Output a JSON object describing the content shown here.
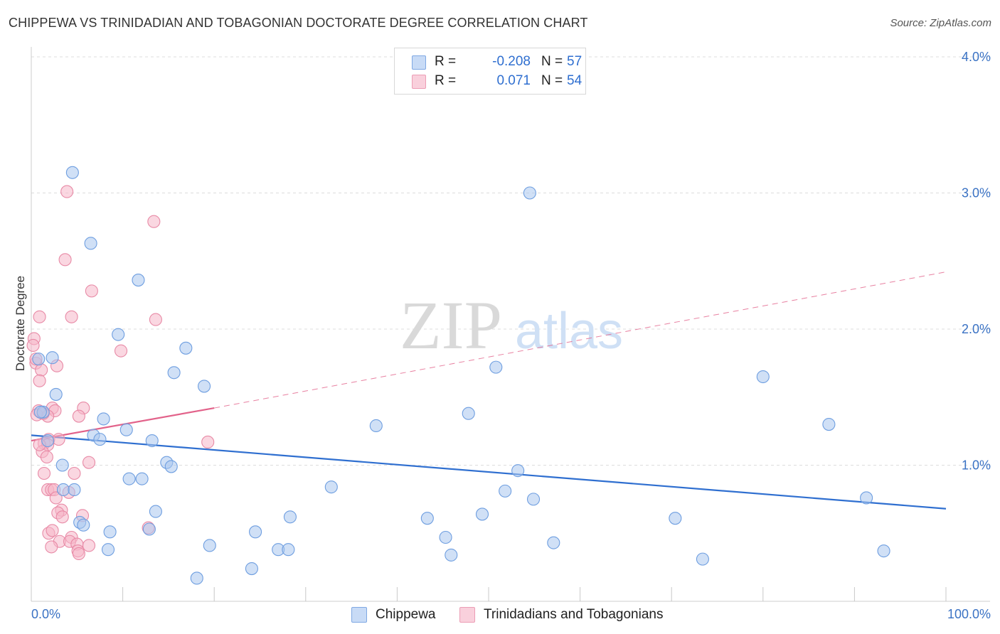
{
  "header": {
    "title": "CHIPPEWA VS TRINIDADIAN AND TOBAGONIAN DOCTORATE DEGREE CORRELATION CHART",
    "source": "Source: ZipAtlas.com"
  },
  "watermark": {
    "zip": "ZIP",
    "atlas": "atlas"
  },
  "legend_top": {
    "rows": [
      {
        "r_label": "R =",
        "r_value": "-0.208",
        "n_label": "N =",
        "n_value": "57",
        "color": "#a9c6ef"
      },
      {
        "r_label": "R =",
        "r_value": "0.071",
        "n_label": "N =",
        "n_value": "54",
        "color": "#f5b6c8"
      }
    ]
  },
  "legend_bottom": {
    "items": [
      {
        "label": "Chippewa",
        "color": "#a9c6ef"
      },
      {
        "label": "Trinidadians and Tobagonians",
        "color": "#f5b6c8"
      }
    ]
  },
  "colors": {
    "blue_fill": "#a9c6ef",
    "blue_stroke": "#6e9ee0",
    "blue_line": "#2f6fd0",
    "pink_fill": "#f5b6c8",
    "pink_stroke": "#e88aa6",
    "pink_line": "#e2628a",
    "grid": "#dddddd",
    "tick_label": "#3a72c4"
  },
  "chart_data": {
    "type": "scatter",
    "title": "CHIPPEWA VS TRINIDADIAN AND TOBAGONIAN DOCTORATE DEGREE CORRELATION CHART",
    "xlabel": "",
    "ylabel": "Doctorate Degree",
    "xlim": [
      0,
      100
    ],
    "ylim": [
      0,
      4.1
    ],
    "x_tick_labels": [
      "0.0%",
      "100.0%"
    ],
    "y_ticks": [
      1.0,
      2.0,
      3.0,
      4.0
    ],
    "y_tick_labels": [
      "1.0%",
      "2.0%",
      "3.0%",
      "4.0%"
    ],
    "grid": true,
    "series": [
      {
        "name": "Chippewa",
        "points": [
          [
            4.5,
            3.15
          ],
          [
            0.8,
            1.78
          ],
          [
            2.3,
            1.79
          ],
          [
            6.5,
            2.63
          ],
          [
            11.7,
            2.36
          ],
          [
            9.5,
            1.96
          ],
          [
            16.9,
            1.86
          ],
          [
            15.6,
            1.68
          ],
          [
            18.9,
            1.58
          ],
          [
            2.7,
            1.52
          ],
          [
            1.3,
            1.39
          ],
          [
            7.9,
            1.34
          ],
          [
            10.4,
            1.26
          ],
          [
            6.8,
            1.22
          ],
          [
            7.5,
            1.19
          ],
          [
            13.2,
            1.18
          ],
          [
            14.8,
            1.02
          ],
          [
            3.4,
            1.0
          ],
          [
            15.3,
            0.99
          ],
          [
            10.7,
            0.9
          ],
          [
            12.1,
            0.9
          ],
          [
            3.5,
            0.82
          ],
          [
            4.7,
            0.82
          ],
          [
            13.6,
            0.66
          ],
          [
            5.3,
            0.58
          ],
          [
            5.7,
            0.56
          ],
          [
            8.6,
            0.51
          ],
          [
            12.9,
            0.53
          ],
          [
            8.4,
            0.38
          ],
          [
            19.5,
            0.41
          ],
          [
            24.1,
            0.24
          ],
          [
            18.1,
            0.17
          ],
          [
            24.5,
            0.51
          ],
          [
            27.0,
            0.38
          ],
          [
            28.1,
            0.38
          ],
          [
            28.3,
            0.62
          ],
          [
            32.8,
            0.84
          ],
          [
            37.7,
            1.29
          ],
          [
            43.3,
            0.61
          ],
          [
            45.3,
            0.47
          ],
          [
            45.9,
            0.34
          ],
          [
            47.8,
            1.38
          ],
          [
            49.3,
            0.64
          ],
          [
            50.8,
            1.72
          ],
          [
            51.8,
            0.81
          ],
          [
            53.2,
            0.96
          ],
          [
            54.5,
            3.0
          ],
          [
            54.9,
            0.75
          ],
          [
            57.1,
            0.43
          ],
          [
            70.4,
            0.61
          ],
          [
            73.4,
            0.31
          ],
          [
            80.0,
            1.65
          ],
          [
            87.2,
            1.3
          ],
          [
            91.3,
            0.76
          ],
          [
            93.2,
            0.37
          ],
          [
            1.0,
            1.39
          ],
          [
            1.8,
            1.18
          ]
        ]
      },
      {
        "name": "Trinidadians and Tobagonians",
        "points": [
          [
            3.9,
            3.01
          ],
          [
            13.4,
            2.79
          ],
          [
            3.7,
            2.51
          ],
          [
            6.6,
            2.28
          ],
          [
            0.9,
            2.09
          ],
          [
            4.4,
            2.09
          ],
          [
            13.6,
            2.07
          ],
          [
            0.3,
            1.93
          ],
          [
            9.8,
            1.84
          ],
          [
            0.5,
            1.75
          ],
          [
            1.1,
            1.7
          ],
          [
            2.8,
            1.73
          ],
          [
            0.9,
            1.62
          ],
          [
            0.8,
            1.4
          ],
          [
            0.6,
            1.37
          ],
          [
            2.3,
            1.42
          ],
          [
            2.6,
            1.4
          ],
          [
            5.7,
            1.42
          ],
          [
            5.2,
            1.36
          ],
          [
            1.8,
            1.36
          ],
          [
            1.9,
            1.19
          ],
          [
            3.0,
            1.19
          ],
          [
            1.4,
            1.16
          ],
          [
            1.8,
            1.15
          ],
          [
            19.3,
            1.17
          ],
          [
            1.2,
            1.1
          ],
          [
            1.7,
            1.06
          ],
          [
            6.3,
            1.02
          ],
          [
            1.4,
            0.94
          ],
          [
            4.7,
            0.94
          ],
          [
            1.8,
            0.82
          ],
          [
            2.2,
            0.82
          ],
          [
            2.5,
            0.82
          ],
          [
            4.1,
            0.8
          ],
          [
            2.7,
            0.76
          ],
          [
            3.3,
            0.67
          ],
          [
            2.9,
            0.65
          ],
          [
            3.4,
            0.62
          ],
          [
            5.6,
            0.63
          ],
          [
            1.9,
            0.5
          ],
          [
            2.3,
            0.52
          ],
          [
            12.8,
            0.54
          ],
          [
            4.4,
            0.47
          ],
          [
            3.1,
            0.44
          ],
          [
            4.2,
            0.44
          ],
          [
            5.0,
            0.42
          ],
          [
            6.3,
            0.41
          ],
          [
            2.2,
            0.4
          ],
          [
            5.1,
            0.37
          ],
          [
            5.2,
            0.35
          ],
          [
            0.2,
            1.88
          ],
          [
            0.5,
            1.78
          ],
          [
            1.3,
            1.38
          ],
          [
            0.9,
            1.15
          ]
        ]
      }
    ],
    "trend_lines": [
      {
        "series": "Chippewa",
        "x": [
          0,
          100
        ],
        "y": [
          1.22,
          0.68
        ],
        "style": "solid"
      },
      {
        "series": "Trinidadians and Tobagonians",
        "x": [
          0,
          20
        ],
        "y": [
          1.18,
          1.42
        ],
        "style": "solid"
      },
      {
        "series": "Trinidadians and Tobagonians",
        "x": [
          20,
          100
        ],
        "y": [
          1.42,
          2.42
        ],
        "style": "dashed"
      }
    ]
  }
}
